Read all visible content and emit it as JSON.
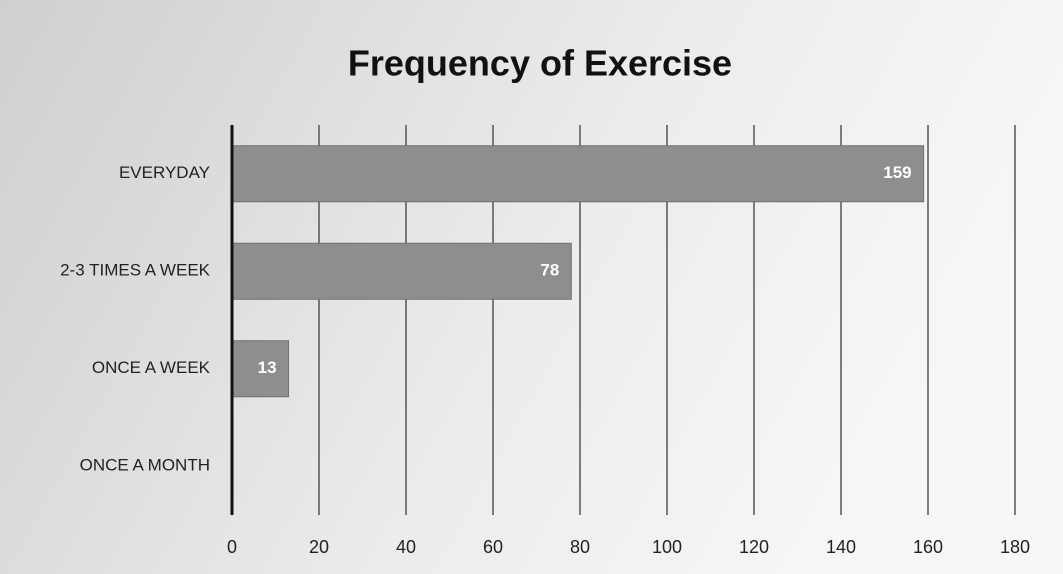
{
  "chart_data": {
    "type": "bar",
    "orientation": "horizontal",
    "title": "Frequency of Exercise",
    "categories": [
      "EVERYDAY",
      "2-3 TIMES A WEEK",
      "ONCE A WEEK",
      "ONCE A MONTH"
    ],
    "values": [
      159,
      78,
      13,
      0
    ],
    "color": "#8e8e8e",
    "xlim": [
      0,
      180
    ],
    "xticks": [
      0,
      20,
      40,
      60,
      80,
      100,
      120,
      140,
      160,
      180
    ],
    "grid": true
  }
}
